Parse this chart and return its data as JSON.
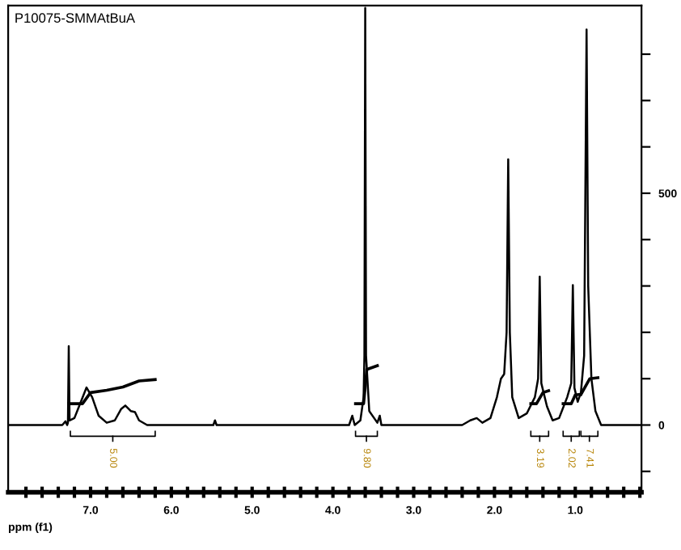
{
  "chart_data": {
    "type": "line",
    "title": "P10075-SMMAtBuA",
    "xlabel": "ppm (f1)",
    "xlim": [
      8.02,
      0.18
    ],
    "ylim": [
      -145,
      905
    ],
    "xticks": [
      {
        "value": 7.8,
        "label": null
      },
      {
        "value": 7.6,
        "label": null
      },
      {
        "value": 7.4,
        "label": null
      },
      {
        "value": 7.2,
        "label": null
      },
      {
        "value": 7.0,
        "label": "7.0"
      },
      {
        "value": 6.8,
        "label": null
      },
      {
        "value": 6.6,
        "label": null
      },
      {
        "value": 6.4,
        "label": null
      },
      {
        "value": 6.2,
        "label": null
      },
      {
        "value": 6.0,
        "label": "6.0"
      },
      {
        "value": 5.8,
        "label": null
      },
      {
        "value": 5.6,
        "label": null
      },
      {
        "value": 5.4,
        "label": null
      },
      {
        "value": 5.2,
        "label": null
      },
      {
        "value": 5.0,
        "label": "5.0"
      },
      {
        "value": 4.8,
        "label": null
      },
      {
        "value": 4.6,
        "label": null
      },
      {
        "value": 4.4,
        "label": null
      },
      {
        "value": 4.2,
        "label": null
      },
      {
        "value": 4.0,
        "label": "4.0"
      },
      {
        "value": 3.8,
        "label": null
      },
      {
        "value": 3.6,
        "label": null
      },
      {
        "value": 3.4,
        "label": null
      },
      {
        "value": 3.2,
        "label": null
      },
      {
        "value": 3.0,
        "label": "3.0"
      },
      {
        "value": 2.8,
        "label": null
      },
      {
        "value": 2.6,
        "label": null
      },
      {
        "value": 2.4,
        "label": null
      },
      {
        "value": 2.2,
        "label": null
      },
      {
        "value": 2.0,
        "label": "2.0"
      },
      {
        "value": 1.8,
        "label": null
      },
      {
        "value": 1.6,
        "label": null
      },
      {
        "value": 1.4,
        "label": null
      },
      {
        "value": 1.2,
        "label": null
      },
      {
        "value": 1.0,
        "label": "1.0"
      },
      {
        "value": 0.8,
        "label": null
      },
      {
        "value": 0.6,
        "label": null
      },
      {
        "value": 0.4,
        "label": null
      },
      {
        "value": 0.2,
        "label": null
      }
    ],
    "yticks": [
      {
        "value": -100,
        "label": null
      },
      0,
      {
        "value": 100,
        "label": null
      },
      {
        "value": 200,
        "label": null
      },
      {
        "value": 300,
        "label": null
      },
      {
        "value": 400,
        "label": null
      },
      500,
      {
        "value": 600,
        "label": null
      },
      {
        "value": 700,
        "label": null
      },
      {
        "value": 800,
        "label": null
      }
    ],
    "grid": false,
    "legend": false,
    "marker": "none",
    "line_style": "solid",
    "series": [
      {
        "color": "#000000",
        "x": [
          8.0,
          7.35,
          7.31,
          7.29,
          7.28,
          7.27,
          7.26,
          7.2,
          7.12,
          7.05,
          6.98,
          6.9,
          6.8,
          6.7,
          6.62,
          6.57,
          6.5,
          6.45,
          6.4,
          6.3,
          5.48,
          5.46,
          5.44,
          3.8,
          3.76,
          3.73,
          3.66,
          3.62,
          3.61,
          3.6,
          3.59,
          3.55,
          3.45,
          3.42,
          3.4,
          2.4,
          2.3,
          2.22,
          2.15,
          2.05,
          1.97,
          1.92,
          1.88,
          1.85,
          1.83,
          1.81,
          1.78,
          1.7,
          1.6,
          1.5,
          1.46,
          1.44,
          1.42,
          1.35,
          1.28,
          1.2,
          1.1,
          1.05,
          1.03,
          1.01,
          0.97,
          0.93,
          0.89,
          0.86,
          0.84,
          0.8,
          0.75,
          0.68,
          0.18
        ],
        "values": [
          0,
          0,
          8,
          0,
          5,
          170,
          10,
          15,
          50,
          81,
          60,
          20,
          5,
          10,
          35,
          42,
          30,
          28,
          10,
          0,
          0,
          10,
          0,
          0,
          20,
          0,
          10,
          60,
          150,
          900,
          150,
          30,
          5,
          20,
          0,
          0,
          10,
          15,
          5,
          15,
          60,
          100,
          110,
          200,
          573,
          200,
          60,
          15,
          25,
          60,
          100,
          320,
          90,
          40,
          10,
          15,
          60,
          90,
          302,
          80,
          50,
          70,
          150,
          853,
          300,
          100,
          30,
          0,
          0
        ]
      },
      {
        "color": "#000000",
        "x": [
          7.25,
          7.1,
          7.0,
          6.8,
          6.6,
          6.4,
          6.2
        ],
        "values": [
          46,
          46,
          70,
          75,
          82,
          95,
          98
        ]
      },
      {
        "color": "#000000",
        "x": [
          3.72,
          3.62,
          3.58,
          3.45
        ],
        "values": [
          46,
          46,
          120,
          128
        ]
      },
      {
        "color": "#000000",
        "x": [
          1.55,
          1.48,
          1.4,
          1.33
        ],
        "values": [
          46,
          46,
          70,
          74
        ]
      },
      {
        "color": "#000000",
        "x": [
          1.15,
          1.05,
          1.0,
          0.95
        ],
        "values": [
          46,
          46,
          65,
          66
        ]
      },
      {
        "color": "#000000",
        "x": [
          0.93,
          0.82,
          0.72
        ],
        "values": [
          66,
          100,
          102
        ]
      }
    ],
    "annotations": [
      "5.00",
      "9.80",
      "3.19",
      "2.02",
      "7.41"
    ]
  }
}
